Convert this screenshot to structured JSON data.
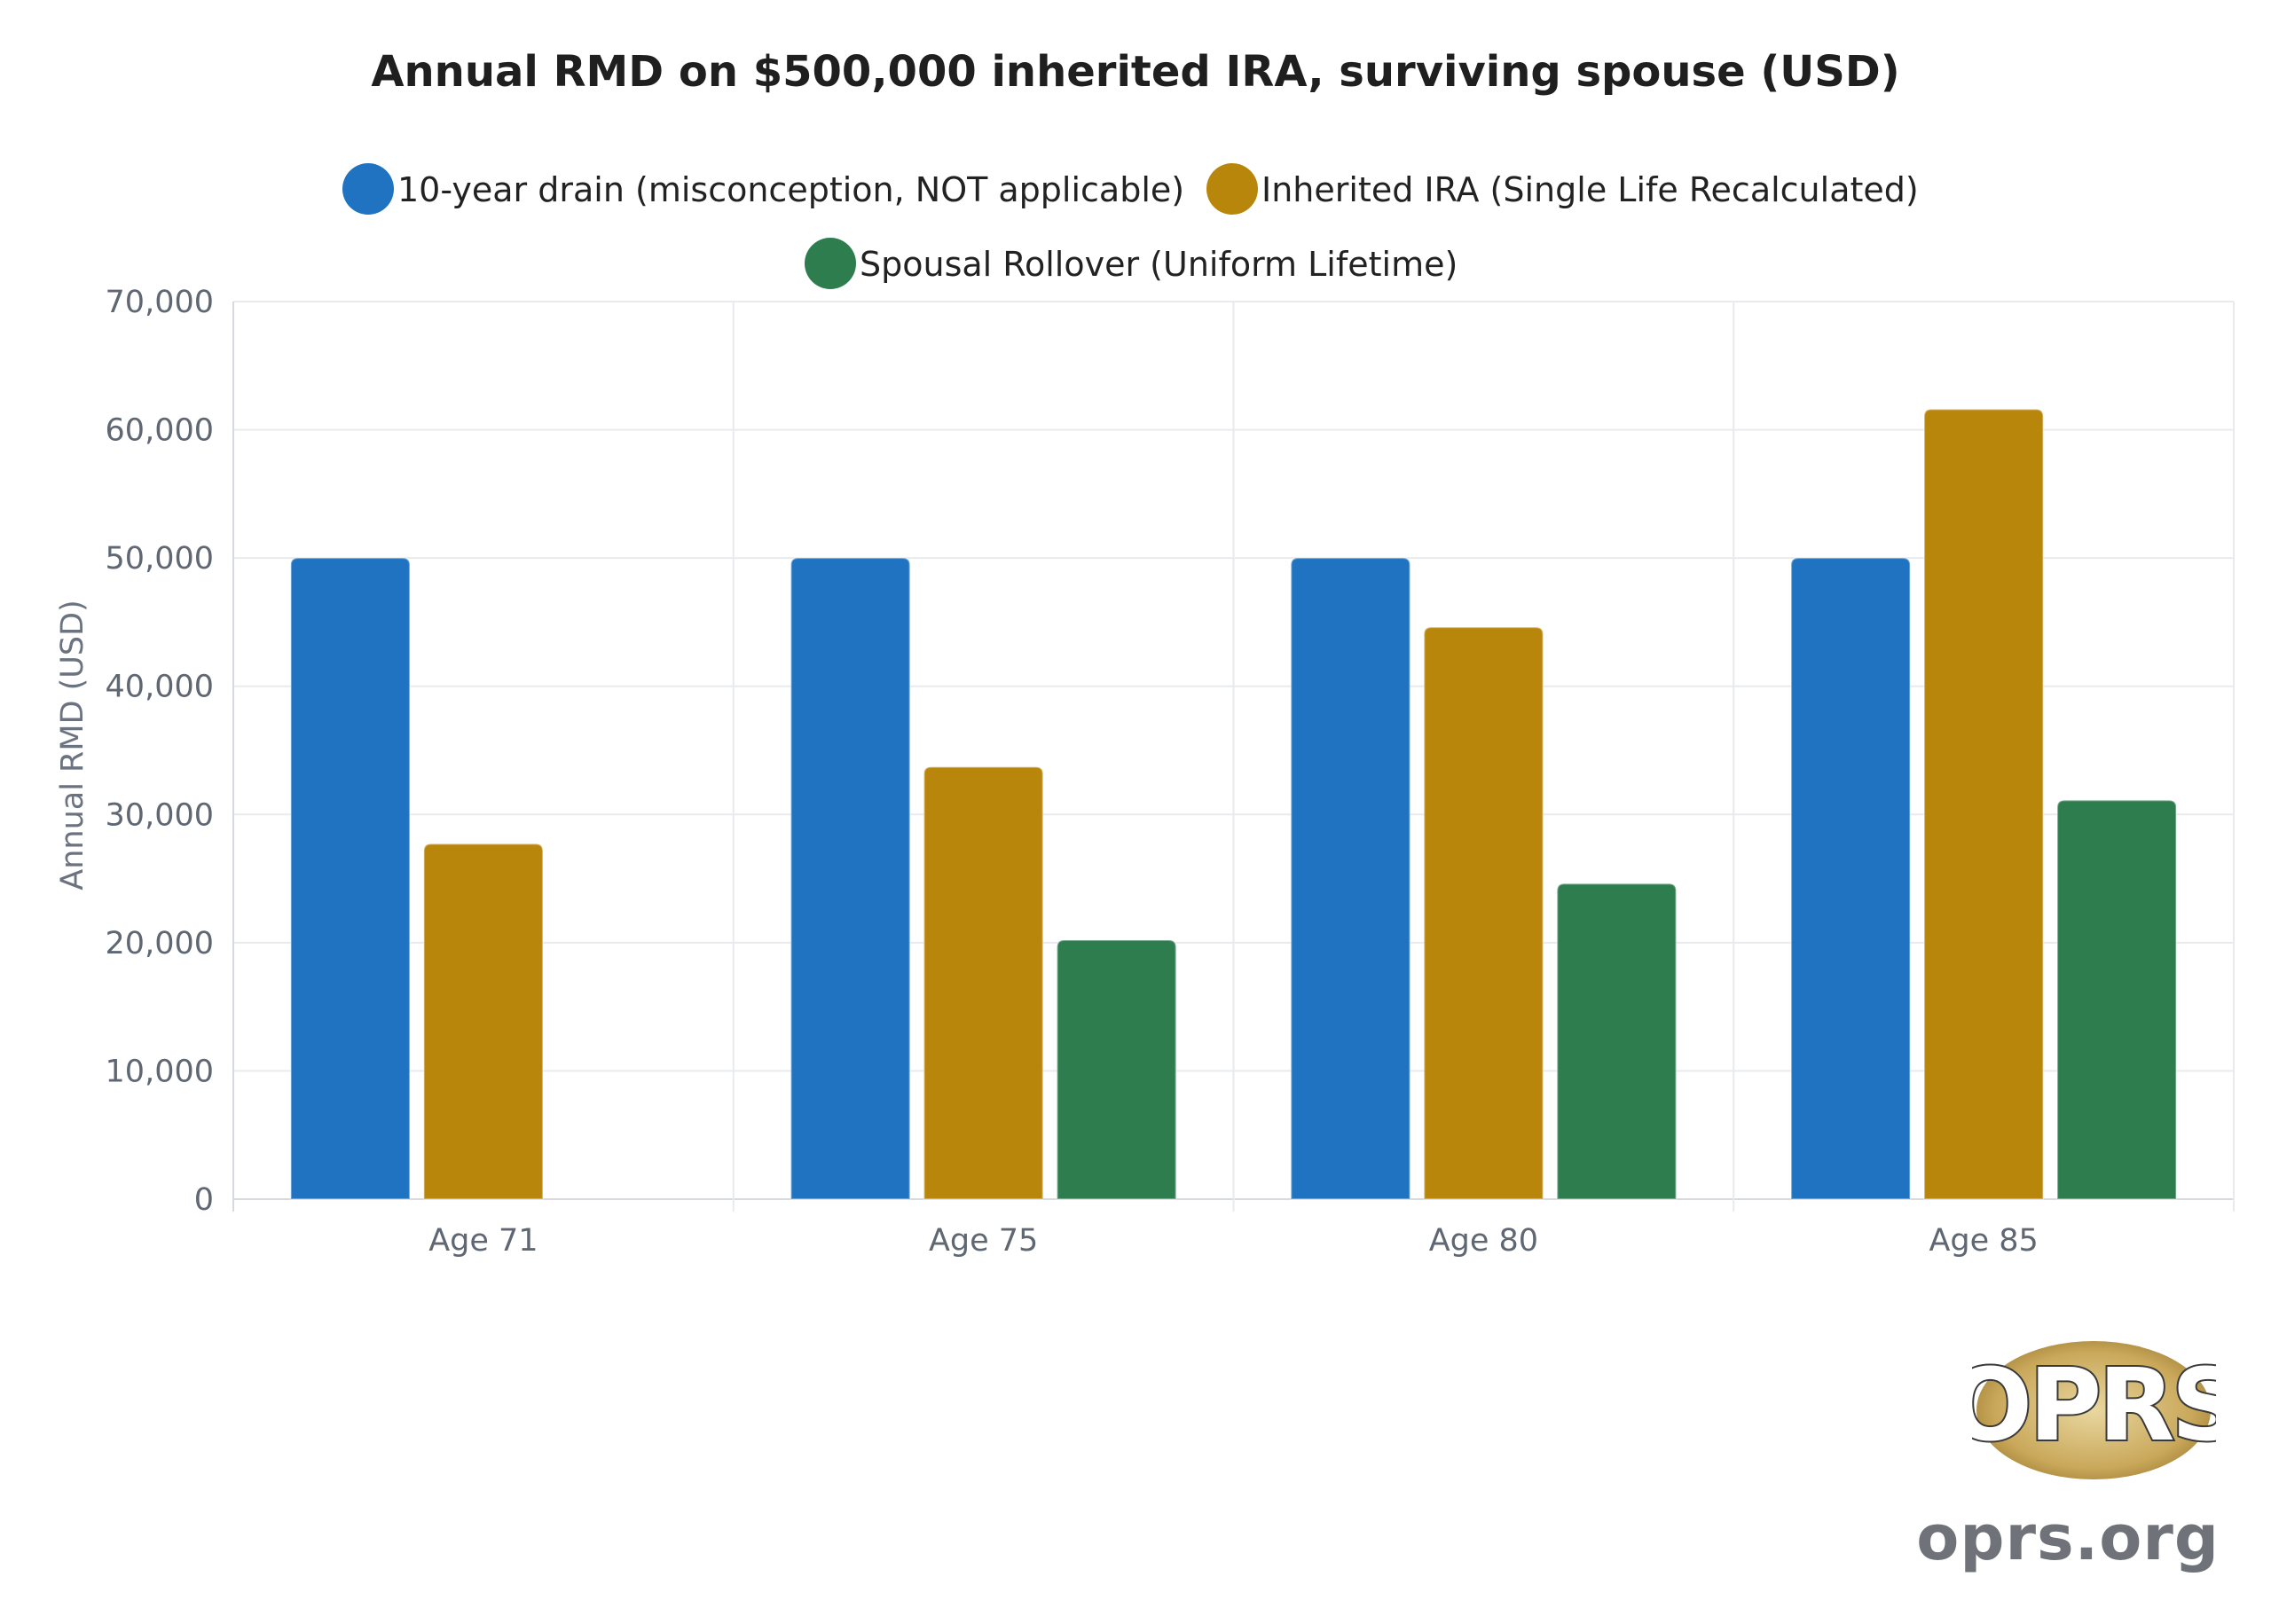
{
  "chart_data": {
    "type": "bar",
    "title": "Annual RMD on $500,000 inherited IRA, surviving spouse (USD)",
    "xlabel": "",
    "ylabel": "Annual RMD (USD)",
    "categories": [
      "Age 71",
      "Age 75",
      "Age 80",
      "Age 85"
    ],
    "series": [
      {
        "name": "10-year drain (misconception, NOT applicable)",
        "color": "#1f73c1",
        "values": [
          50000,
          50000,
          50000,
          50000
        ]
      },
      {
        "name": "Inherited IRA (Single Life Recalculated)",
        "color": "#b8860b",
        "values": [
          27700,
          33700,
          44600,
          61600
        ]
      },
      {
        "name": "Spousal Rollover (Uniform Lifetime)",
        "color": "#2e7d4f",
        "values": [
          null,
          20200,
          24600,
          31100
        ]
      }
    ],
    "ylim": [
      0,
      70000
    ],
    "yticks": [
      "0",
      "10,000",
      "20,000",
      "30,000",
      "40,000",
      "50,000",
      "60,000",
      "70,000"
    ],
    "grid": true,
    "legend": "top-center"
  },
  "logo": {
    "text": "OPRS",
    "url": "oprs.org"
  }
}
